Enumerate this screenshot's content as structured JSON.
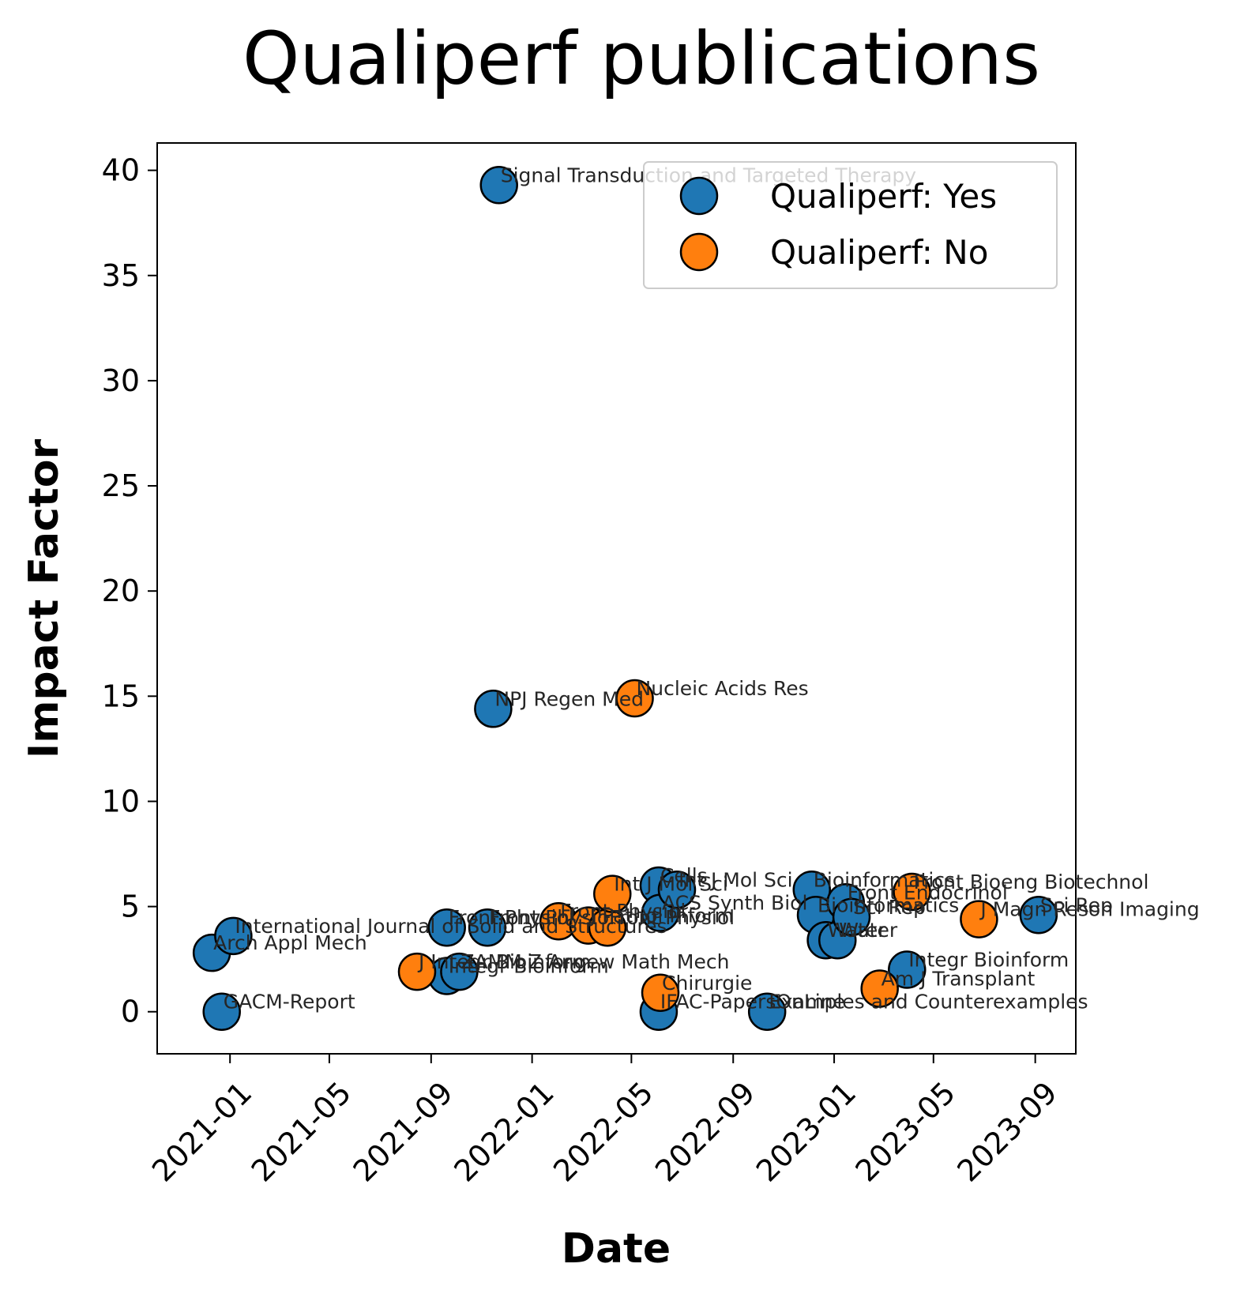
{
  "chart_data": {
    "type": "scatter",
    "title": "Qualiperf publications",
    "xlabel": "Date",
    "ylabel": "Impact Factor",
    "xlim": [
      "2020-10-05",
      "2023-10-20"
    ],
    "ylim": [
      -2,
      41.3
    ],
    "x_ticks": [
      "2021-01",
      "2021-05",
      "2021-09",
      "2022-01",
      "2022-05",
      "2022-09",
      "2023-01",
      "2023-05",
      "2023-09"
    ],
    "y_ticks": [
      0,
      5,
      10,
      15,
      20,
      25,
      30,
      35,
      40
    ],
    "grid": false,
    "legend_position": "top-right",
    "colors": {
      "yes": "#1f77b4",
      "no": "#ff7f0e",
      "edge": "#000000"
    },
    "series": [
      {
        "name": "Qualiperf: Yes",
        "color": "#1f77b4",
        "points": [
          {
            "x": "2020-12-10",
            "y": 2.8,
            "label": "Arch Appl Mech"
          },
          {
            "x": "2020-12-22",
            "y": 0.0,
            "label": "GACM-Report"
          },
          {
            "x": "2021-01-05",
            "y": 3.6,
            "label": "International Journal of Solid and Structures"
          },
          {
            "x": "2021-09-20",
            "y": 4.0,
            "label": "Front Physiol"
          },
          {
            "x": "2021-09-20",
            "y": 1.7,
            "label": "Integr Bioinform"
          },
          {
            "x": "2021-10-05",
            "y": 1.9,
            "label": "ZAMM Z Angew Math Mech"
          },
          {
            "x": "2021-11-08",
            "y": 4.0,
            "label": "Front Physiol"
          },
          {
            "x": "2021-11-15",
            "y": 14.4,
            "label": "NPJ Regen Med"
          },
          {
            "x": "2021-11-22",
            "y": 39.3,
            "label": "Signal Transduction and Targeted Therapy"
          },
          {
            "x": "2022-06-03",
            "y": 6.0,
            "label": "Cells"
          },
          {
            "x": "2022-06-05",
            "y": 4.7,
            "label": "ACS Synth Biol"
          },
          {
            "x": "2022-06-03",
            "y": 0.0,
            "label": "IFAC-PapersOnLine"
          },
          {
            "x": "2022-06-25",
            "y": 5.8,
            "label": "Int J Mol Sci"
          },
          {
            "x": "2022-10-12",
            "y": 0.0,
            "label": "Examples and Counterexamples"
          },
          {
            "x": "2022-12-05",
            "y": 5.8,
            "label": "Bioinformatics"
          },
          {
            "x": "2022-12-10",
            "y": 4.6,
            "label": "Bioinformatics"
          },
          {
            "x": "2022-12-22",
            "y": 3.4,
            "label": "Water"
          },
          {
            "x": "2023-01-05",
            "y": 3.4,
            "label": "Water"
          },
          {
            "x": "2023-01-15",
            "y": 5.2,
            "label": "Front Endocrinol"
          },
          {
            "x": "2023-01-22",
            "y": 4.5,
            "label": "Sci Rep"
          },
          {
            "x": "2023-03-30",
            "y": 2.0,
            "label": "Integr Bioinform"
          },
          {
            "x": "2023-09-05",
            "y": 4.6,
            "label": "Sci Rep"
          }
        ]
      },
      {
        "name": "Qualiperf: No",
        "color": "#ff7f0e",
        "points": [
          {
            "x": "2021-08-15",
            "y": 1.9,
            "label": "J Integr Bioinform"
          },
          {
            "x": "2022-02-02",
            "y": 4.3,
            "label": "Front Physiol"
          },
          {
            "x": "2022-03-10",
            "y": 4.1,
            "label": "J Pathol Inform"
          },
          {
            "x": "2022-04-02",
            "y": 4.0,
            "label": "Front Physiol"
          },
          {
            "x": "2022-04-08",
            "y": 5.6,
            "label": "Int J Mol Sci"
          },
          {
            "x": "2022-05-05",
            "y": 14.9,
            "label": "Nucleic Acids Res"
          },
          {
            "x": "2022-06-05",
            "y": 0.9,
            "label": "Chirurgie"
          },
          {
            "x": "2023-02-25",
            "y": 1.1,
            "label": "Am J Transplant"
          },
          {
            "x": "2023-04-05",
            "y": 5.7,
            "label": "Front Bioeng Biotechnol"
          },
          {
            "x": "2023-06-25",
            "y": 4.4,
            "label": "J Magn Reson Imaging"
          }
        ]
      }
    ]
  }
}
